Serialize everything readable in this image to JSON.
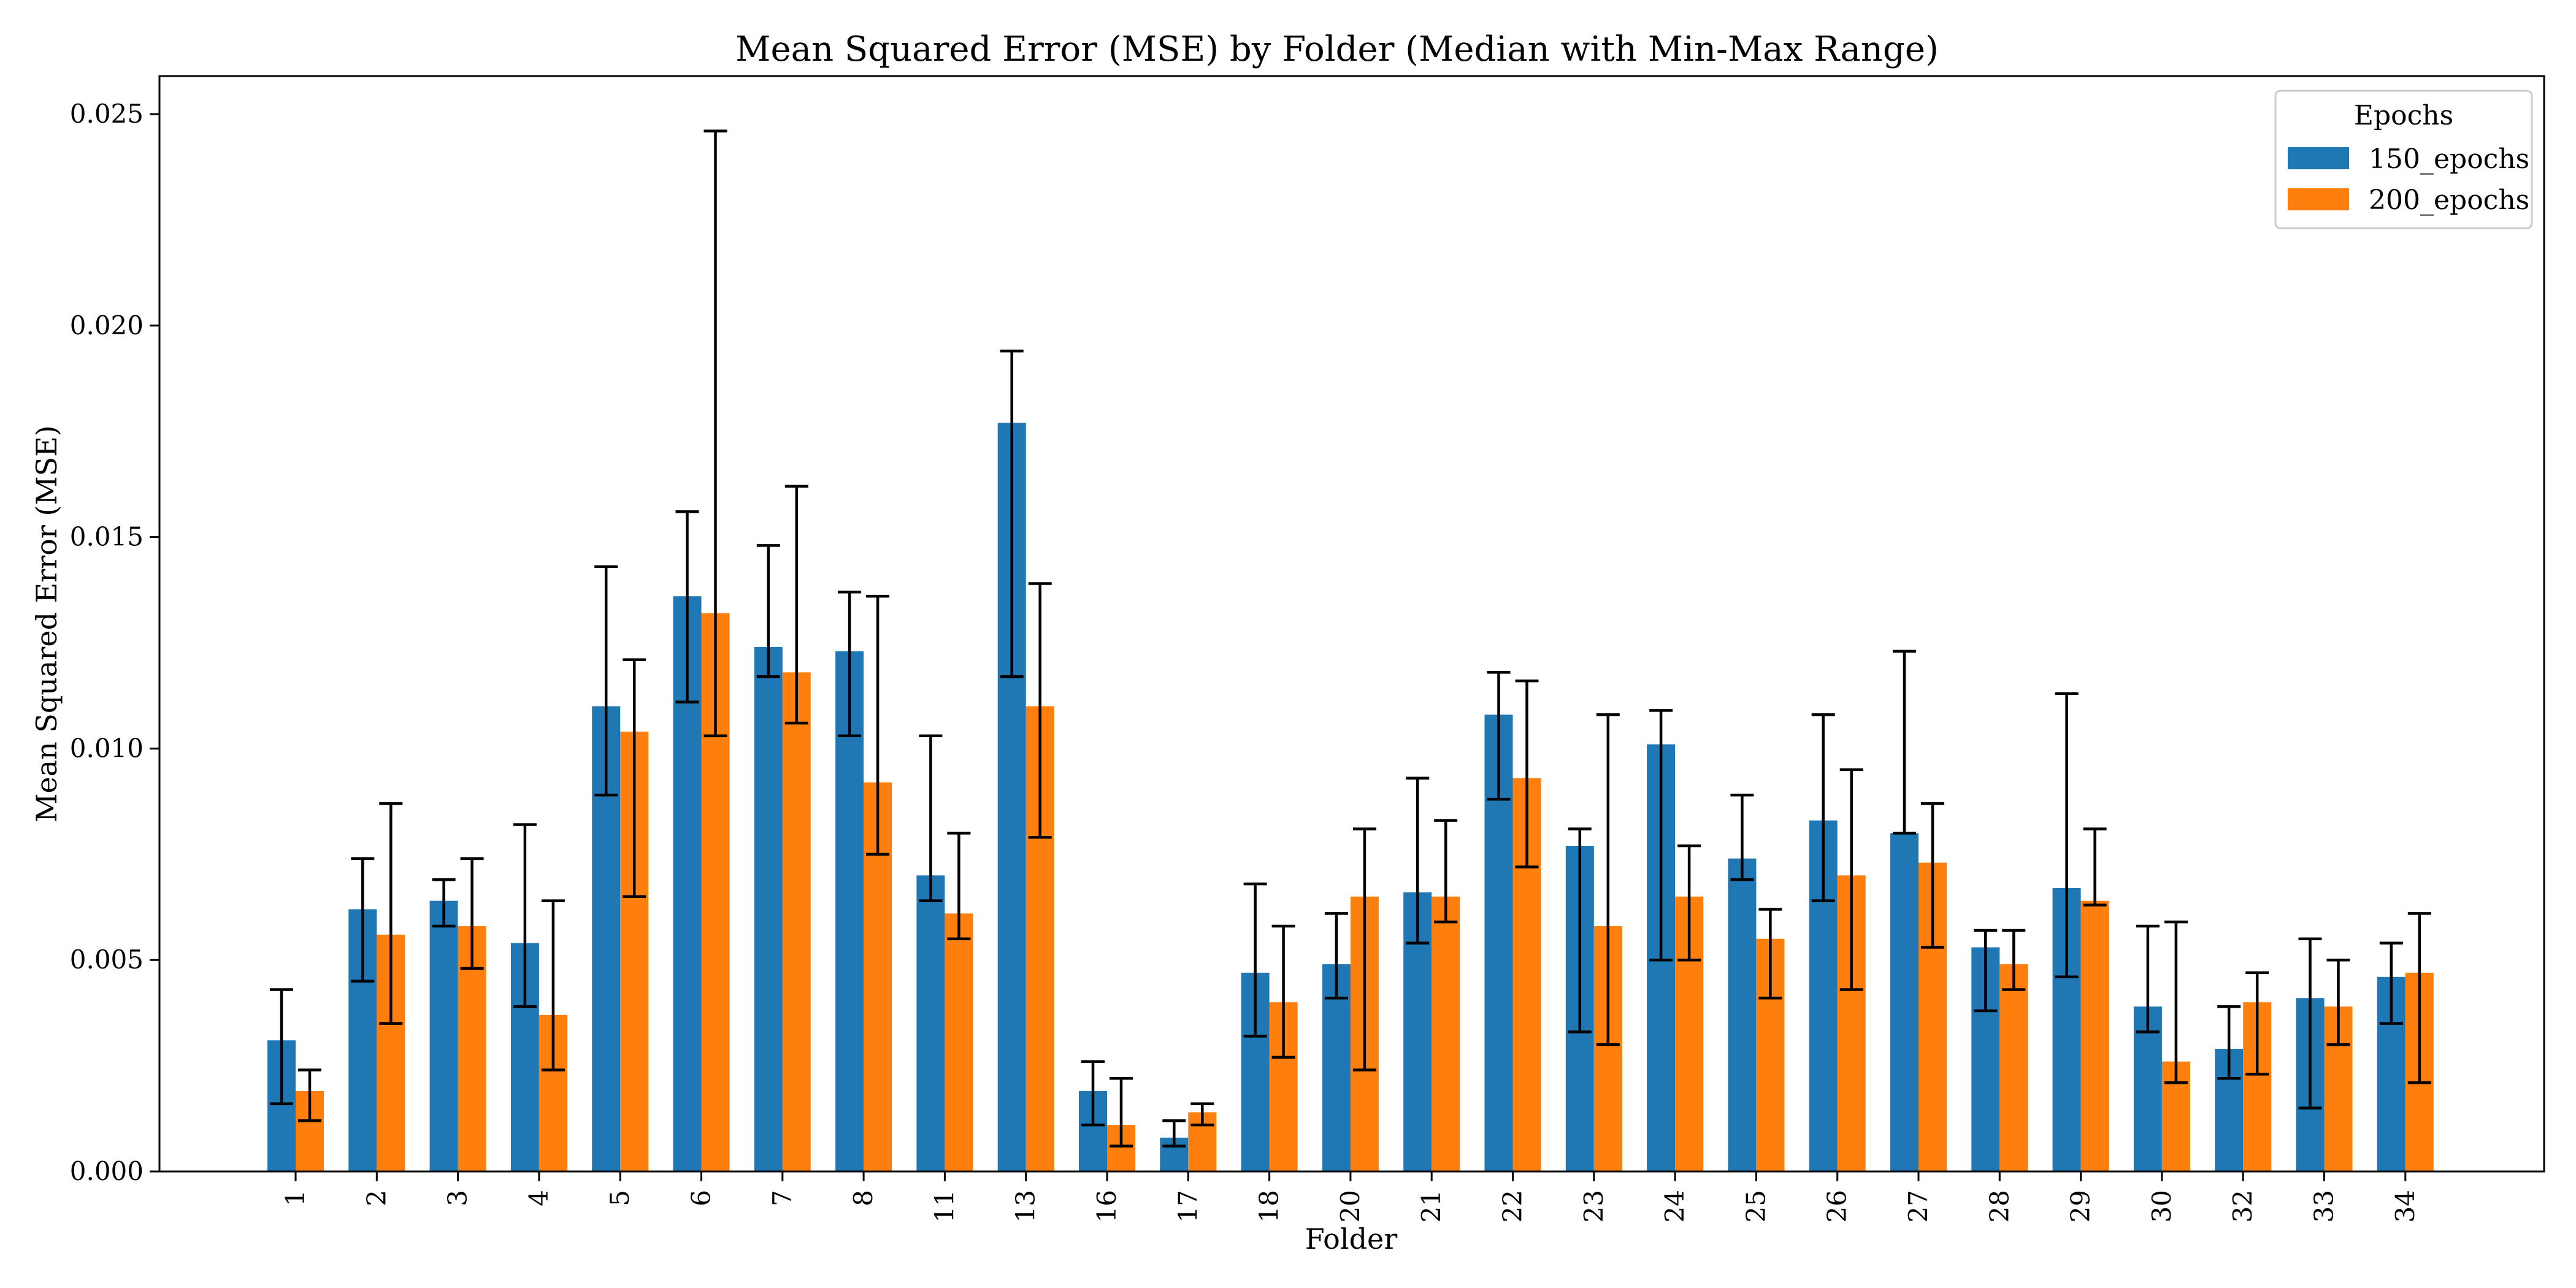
{
  "chart_data": {
    "type": "bar",
    "title": "Mean Squared Error (MSE) by Folder (Median with Min-Max Range)",
    "xlabel": "Folder",
    "ylabel": "Mean Squared Error (MSE)",
    "ylim": [
      0,
      0.0259
    ],
    "yticks": [
      "0.000",
      "0.005",
      "0.010",
      "0.015",
      "0.020",
      "0.025"
    ],
    "grid": false,
    "legend": {
      "title": "Epochs",
      "placement": "top-right"
    },
    "categories": [
      "1",
      "2",
      "3",
      "4",
      "5",
      "6",
      "7",
      "8",
      "11",
      "13",
      "16",
      "17",
      "18",
      "20",
      "21",
      "22",
      "23",
      "24",
      "25",
      "26",
      "27",
      "28",
      "29",
      "30",
      "32",
      "33",
      "34"
    ],
    "series": [
      {
        "name": "150_epochs",
        "color": "#1f77b4",
        "values": [
          0.0031,
          0.0062,
          0.0064,
          0.0054,
          0.011,
          0.0136,
          0.0124,
          0.0123,
          0.007,
          0.0177,
          0.0019,
          0.0008,
          0.0047,
          0.0049,
          0.0066,
          0.0108,
          0.0077,
          0.0101,
          0.0074,
          0.0083,
          0.008,
          0.0053,
          0.0067,
          0.0039,
          0.0029,
          0.0041,
          0.0046
        ],
        "min": [
          0.0016,
          0.0045,
          0.0058,
          0.0039,
          0.0089,
          0.0111,
          0.0117,
          0.0103,
          0.0064,
          0.0117,
          0.0011,
          0.0006,
          0.0032,
          0.0041,
          0.0054,
          0.0088,
          0.0033,
          0.005,
          0.0069,
          0.0064,
          0.008,
          0.0038,
          0.0046,
          0.0033,
          0.0022,
          0.0015,
          0.0035
        ],
        "max": [
          0.0043,
          0.0074,
          0.0069,
          0.0082,
          0.0143,
          0.0156,
          0.0148,
          0.0137,
          0.0103,
          0.0194,
          0.0026,
          0.0012,
          0.0068,
          0.0061,
          0.0093,
          0.0118,
          0.0081,
          0.0109,
          0.0089,
          0.0108,
          0.0123,
          0.0057,
          0.0113,
          0.0058,
          0.0039,
          0.0055,
          0.0054
        ]
      },
      {
        "name": "200_epochs",
        "color": "#ff7f0e",
        "values": [
          0.0019,
          0.0056,
          0.0058,
          0.0037,
          0.0104,
          0.0132,
          0.0118,
          0.0092,
          0.0061,
          0.011,
          0.0011,
          0.0014,
          0.004,
          0.0065,
          0.0065,
          0.0093,
          0.0058,
          0.0065,
          0.0055,
          0.007,
          0.0073,
          0.0049,
          0.0064,
          0.0026,
          0.004,
          0.0039,
          0.0047
        ],
        "min": [
          0.0012,
          0.0035,
          0.0048,
          0.0024,
          0.0065,
          0.0103,
          0.0106,
          0.0075,
          0.0055,
          0.0079,
          0.0006,
          0.0011,
          0.0027,
          0.0024,
          0.0059,
          0.0072,
          0.003,
          0.005,
          0.0041,
          0.0043,
          0.0053,
          0.0043,
          0.0063,
          0.0021,
          0.0023,
          0.003,
          0.0021
        ],
        "max": [
          0.0024,
          0.0087,
          0.0074,
          0.0064,
          0.0121,
          0.0246,
          0.0162,
          0.0136,
          0.008,
          0.0139,
          0.0022,
          0.0016,
          0.0058,
          0.0081,
          0.0083,
          0.0116,
          0.0108,
          0.0077,
          0.0062,
          0.0095,
          0.0087,
          0.0057,
          0.0081,
          0.0059,
          0.0047,
          0.005,
          0.0061
        ]
      }
    ]
  }
}
